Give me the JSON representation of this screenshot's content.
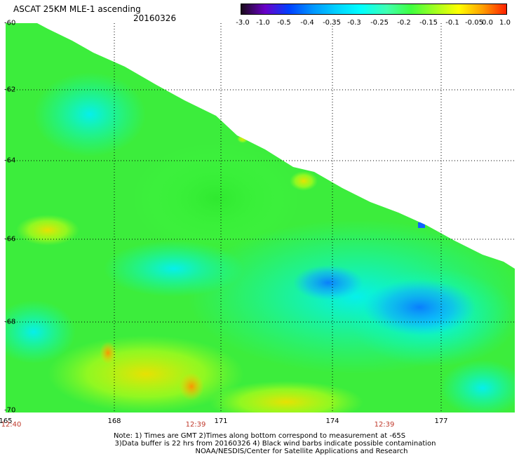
{
  "header": {
    "title": "ASCAT 25KM MLE-1 ascending",
    "date": "20160326"
  },
  "colorbar": {
    "labels": [
      "-3.0",
      "-1.0",
      "-0.5",
      "-0.4",
      "-0.35",
      "-0.3",
      "-0.25",
      "-0.2",
      "-0.15",
      "-0.1",
      "-0.05",
      "0.0",
      "1.0"
    ],
    "colors": [
      "#1a0a1a",
      "#6a00c8",
      "#0040ff",
      "#0096ff",
      "#00d2ff",
      "#00ffff",
      "#40ffb0",
      "#40ff40",
      "#a0ff20",
      "#ffff00",
      "#ffa000",
      "#ff2000"
    ]
  },
  "map": {
    "lat_labels": [
      "-60",
      "-62",
      "-64",
      "-66",
      "-68",
      "-70"
    ],
    "lon_labels": [
      "165",
      "168",
      "171",
      "174",
      "177"
    ],
    "time_labels": [
      "12:40",
      "12:39",
      "12:39"
    ],
    "colors": {
      "green": "#33ee33",
      "green_light": "#55f055",
      "cyan": "#00ffcc",
      "cyan_light": "#00ffff",
      "blue": "#0096ff",
      "yellow": "#ddff00",
      "orange": "#ffaa00"
    }
  },
  "notes": {
    "line1": "Note: 1) Times are GMT 2)Times along bottom correspond to measurement at -65S",
    "line2": "3)Data buffer is 22 hrs from 20160326 4) Black wind barbs indicate possible contamination",
    "line3": "NOAA/NESDIS/Center for Satellite Applications and Research"
  }
}
